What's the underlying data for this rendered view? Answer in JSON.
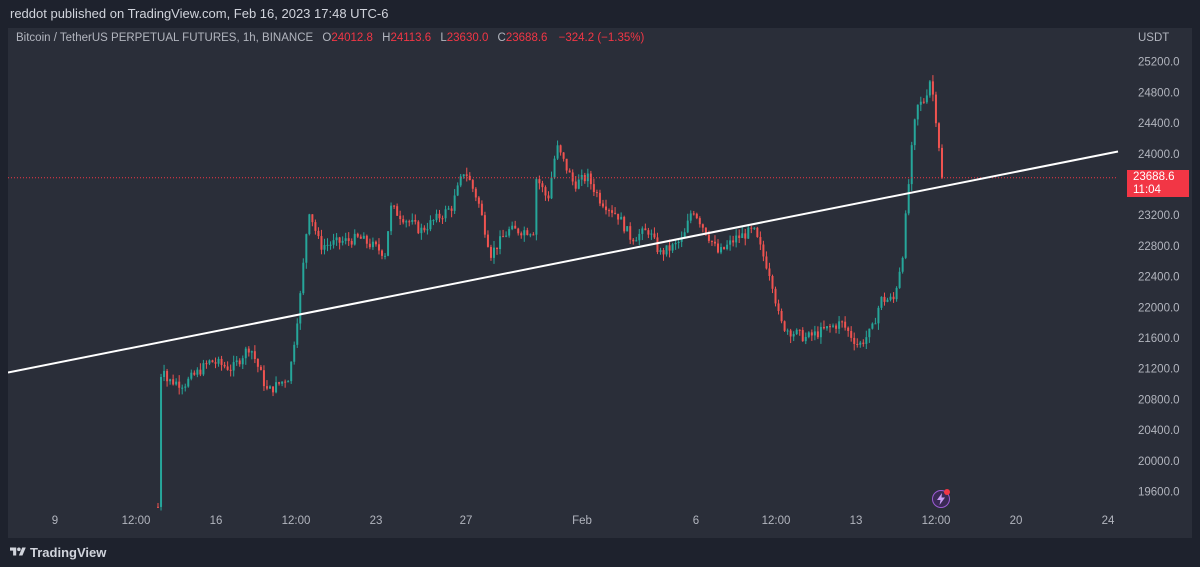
{
  "header": {
    "published_text": "reddot published on TradingView.com, Feb 16, 2023 17:48 UTC-6"
  },
  "legend": {
    "symbol": "Bitcoin / TetherUS PERPETUAL FUTURES, 1h, BINANCE",
    "open_label": "O",
    "open": "24012.8",
    "high_label": "H",
    "high": "24113.6",
    "low_label": "L",
    "low": "23630.0",
    "close_label": "C",
    "close": "23688.6",
    "change": "−324.2 (−1.35%)"
  },
  "price_tag": {
    "price": "23688.6",
    "countdown": "11:04"
  },
  "footer": {
    "brand": "TradingView"
  },
  "colors": {
    "up": "#26a69a",
    "down": "#ef5350",
    "trendline": "#ffffff",
    "price_line": "#f23645",
    "background": "#2a2e39",
    "axis_text": "#b2b5be"
  },
  "icons": [
    "tradingview-logo-icon",
    "lightning-icon"
  ],
  "chart_data": {
    "type": "candlestick",
    "currency": "USDT",
    "x_ticks": [
      "9",
      "12:00",
      "16",
      "12:00",
      "23",
      "27",
      "Feb",
      "6",
      "12:00",
      "13",
      "12:00",
      "20",
      "24"
    ],
    "y_ticks": [
      19600,
      20000,
      20400,
      20800,
      21200,
      21600,
      22000,
      22400,
      22800,
      23200,
      23600,
      24000,
      24400,
      24800,
      25200
    ],
    "ylim": [
      19200,
      25500
    ],
    "current_price": 23688.6,
    "trendline": {
      "from": {
        "x_index": 0,
        "y": 21150
      },
      "to": {
        "x_index": 1,
        "y": 24030
      }
    },
    "path_keypoints": [
      [
        0.0,
        19400
      ],
      [
        0.004,
        21400
      ],
      [
        0.01,
        21050
      ],
      [
        0.03,
        21000
      ],
      [
        0.06,
        21300
      ],
      [
        0.085,
        21200
      ],
      [
        0.105,
        21500
      ],
      [
        0.125,
        20900
      ],
      [
        0.15,
        21100
      ],
      [
        0.163,
        22200
      ],
      [
        0.172,
        23300
      ],
      [
        0.185,
        22800
      ],
      [
        0.23,
        22900
      ],
      [
        0.26,
        22700
      ],
      [
        0.265,
        23300
      ],
      [
        0.3,
        23000
      ],
      [
        0.335,
        23300
      ],
      [
        0.35,
        23800
      ],
      [
        0.365,
        23400
      ],
      [
        0.38,
        22700
      ],
      [
        0.4,
        23000
      ],
      [
        0.43,
        23000
      ],
      [
        0.432,
        23700
      ],
      [
        0.445,
        23400
      ],
      [
        0.455,
        24100
      ],
      [
        0.475,
        23600
      ],
      [
        0.49,
        23700
      ],
      [
        0.505,
        23400
      ],
      [
        0.525,
        23200
      ],
      [
        0.54,
        22900
      ],
      [
        0.56,
        23000
      ],
      [
        0.573,
        22700
      ],
      [
        0.59,
        22800
      ],
      [
        0.6,
        22900
      ],
      [
        0.61,
        23300
      ],
      [
        0.625,
        23000
      ],
      [
        0.64,
        22700
      ],
      [
        0.66,
        22900
      ],
      [
        0.68,
        23000
      ],
      [
        0.7,
        22400
      ],
      [
        0.71,
        21800
      ],
      [
        0.72,
        21700
      ],
      [
        0.74,
        21600
      ],
      [
        0.76,
        21700
      ],
      [
        0.78,
        21800
      ],
      [
        0.8,
        21500
      ],
      [
        0.815,
        21700
      ],
      [
        0.825,
        22100
      ],
      [
        0.84,
        22100
      ],
      [
        0.85,
        22700
      ],
      [
        0.86,
        24000
      ],
      [
        0.866,
        24600
      ],
      [
        0.875,
        24700
      ],
      [
        0.882,
        25000
      ],
      [
        0.89,
        24300
      ],
      [
        0.895,
        23690
      ]
    ]
  }
}
